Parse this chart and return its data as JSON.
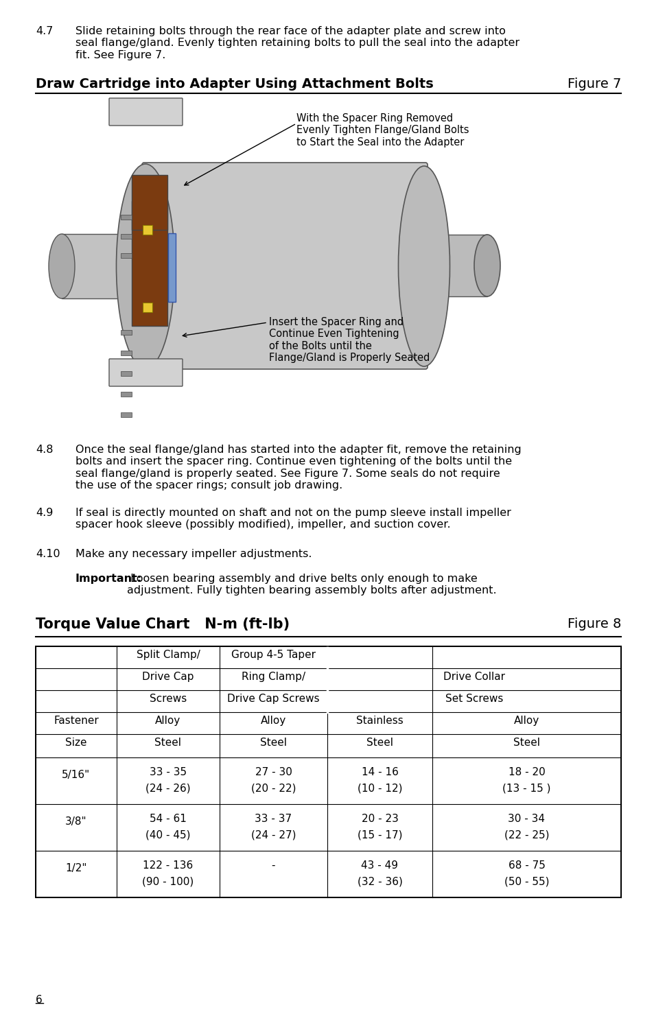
{
  "page_bg": "#ffffff",
  "text_color": "#000000",
  "section_47_num": "4.7",
  "section_47_text": "Slide retaining bolts through the rear face of the adapter plate and screw into\nseal flange/gland. Evenly tighten retaining bolts to pull the seal into the adapter\nfit. See Figure 7.",
  "figure7_title": "Draw Cartridge into Adapter Using Attachment Bolts",
  "figure7_label": "Figure 7",
  "annotation1": "With the Spacer Ring Removed\nEvenly Tighten Flange/Gland Bolts\nto Start the Seal into the Adapter",
  "annotation2": "Insert the Spacer Ring and\nContinue Even Tightening\nof the Bolts until the\nFlange/Gland is Properly Seated",
  "section_48_num": "4.8",
  "section_48_text": "Once the seal flange/gland has started into the adapter fit, remove the retaining\nbolts and insert the spacer ring. Continue even tightening of the bolts until the\nseal flange/gland is properly seated. See Figure 7. Some seals do not require\nthe use of the spacer rings; consult job drawing.",
  "section_49_num": "4.9",
  "section_49_text": "If seal is directly mounted on shaft and not on the pump sleeve install impeller\nspacer hook sleeve (possibly modified), impeller, and suction cover.",
  "section_410_num": "4.10",
  "section_410_text": "Make any necessary impeller adjustments.",
  "important_label": "Important:",
  "important_text": " Loosen bearing assembly and drive belts only enough to make\nadjustment. Fully tighten bearing assembly bolts after adjustment.",
  "torque_title": "Torque Value Chart   N-m (ft-lb)",
  "torque_figure": "Figure 8",
  "table_rows": [
    {
      "size": "5/16\"",
      "col2_nm": "33 - 35",
      "col2_ftlb": "(24 - 26)",
      "col3_nm": "27 - 30",
      "col3_ftlb": "(20 - 22)",
      "col4_nm": "14 - 16",
      "col4_ftlb": "(10 - 12)",
      "col5_nm": "18 - 20",
      "col5_ftlb": "(13 - 15 )"
    },
    {
      "size": "3/8\"",
      "col2_nm": "54 - 61",
      "col2_ftlb": "(40 - 45)",
      "col3_nm": "33 - 37",
      "col3_ftlb": "(24 - 27)",
      "col4_nm": "20 - 23",
      "col4_ftlb": "(15 - 17)",
      "col5_nm": "30 - 34",
      "col5_ftlb": "(22 - 25)"
    },
    {
      "size": "1/2\"",
      "col2_nm": "122 - 136",
      "col2_ftlb": "(90 - 100)",
      "col3_nm": "-",
      "col3_ftlb": "",
      "col4_nm": "43 - 49",
      "col4_ftlb": "(32 - 36)",
      "col5_nm": "68 - 75",
      "col5_ftlb": "(50 - 55)"
    }
  ],
  "page_number": "6"
}
